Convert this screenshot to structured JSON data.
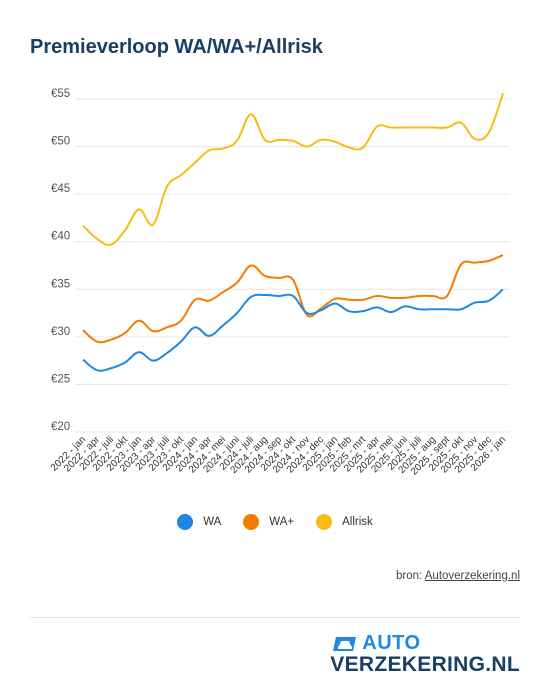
{
  "title": "Premieverloop WA/WA+/Allrisk",
  "source": {
    "prefix": "bron: ",
    "link_text": "Autoverzekering.nl"
  },
  "logo": {
    "top": "AUTO",
    "bottom": "VERZEKERING.NL",
    "icon": "car-shield-icon"
  },
  "colors": {
    "WA": "#1e88e5",
    "WA+": "#f57c00",
    "Allrisk": "#f9bc15",
    "title": "#1b3f63"
  },
  "chart_data": {
    "type": "line",
    "title": "Premieverloop WA/WA+/Allrisk",
    "xlabel": "",
    "ylabel": "",
    "ylim": [
      20,
      55
    ],
    "yticks": [
      20,
      25,
      30,
      35,
      40,
      45,
      50,
      55
    ],
    "ytick_labels": [
      "€20",
      "€25",
      "€30",
      "€35",
      "€40",
      "€45",
      "€50",
      "€55"
    ],
    "grid": true,
    "legend_position": "bottom",
    "categories": [
      "2022 - jan",
      "2022 - apr",
      "2022 - juli",
      "2022 - okt",
      "2023 - jan",
      "2023 - apr",
      "2023 - juli",
      "2023 - okt",
      "2024 - jan",
      "2024 - apr",
      "2024 - mei",
      "2024 - juni",
      "2024 - juli",
      "2024 - aug",
      "2024 - sep",
      "2024 - okt",
      "2024 - nov",
      "2024 - dec",
      "2025 - jan",
      "2025 - feb",
      "2025 - mrt",
      "2025 - apr",
      "2025 - mei",
      "2025 - juni",
      "2025 - juli",
      "2025 - aug",
      "2025 - sept",
      "2025 - okt",
      "2025 - nov",
      "2025 - dec",
      "2026 - jan"
    ],
    "series": [
      {
        "name": "WA",
        "values": [
          27.6,
          26.5,
          26.7,
          27.3,
          28.4,
          27.5,
          28.3,
          29.5,
          31.0,
          30.1,
          31.2,
          32.5,
          34.2,
          34.4,
          34.3,
          34.3,
          32.5,
          32.8,
          33.5,
          32.7,
          32.7,
          33.1,
          32.6,
          33.2,
          32.9,
          32.9,
          32.9,
          32.9,
          33.6,
          33.8,
          35.0
        ]
      },
      {
        "name": "WA+",
        "values": [
          30.7,
          29.5,
          29.7,
          30.4,
          31.7,
          30.6,
          31.0,
          31.7,
          33.9,
          33.8,
          34.7,
          35.7,
          37.5,
          36.4,
          36.2,
          36.0,
          32.3,
          33.0,
          34.0,
          33.9,
          33.9,
          34.3,
          34.1,
          34.1,
          34.3,
          34.3,
          34.3,
          37.6,
          37.8,
          38.0,
          38.6
        ]
      },
      {
        "name": "Allrisk",
        "values": [
          41.7,
          40.3,
          39.7,
          41.2,
          43.4,
          41.8,
          45.8,
          47.0,
          48.3,
          49.6,
          49.8,
          50.6,
          53.4,
          50.7,
          50.7,
          50.6,
          50.0,
          50.7,
          50.5,
          49.9,
          49.9,
          52.1,
          52.0,
          52.0,
          52.0,
          52.0,
          52.0,
          52.5,
          50.8,
          51.5,
          55.6
        ]
      }
    ]
  }
}
